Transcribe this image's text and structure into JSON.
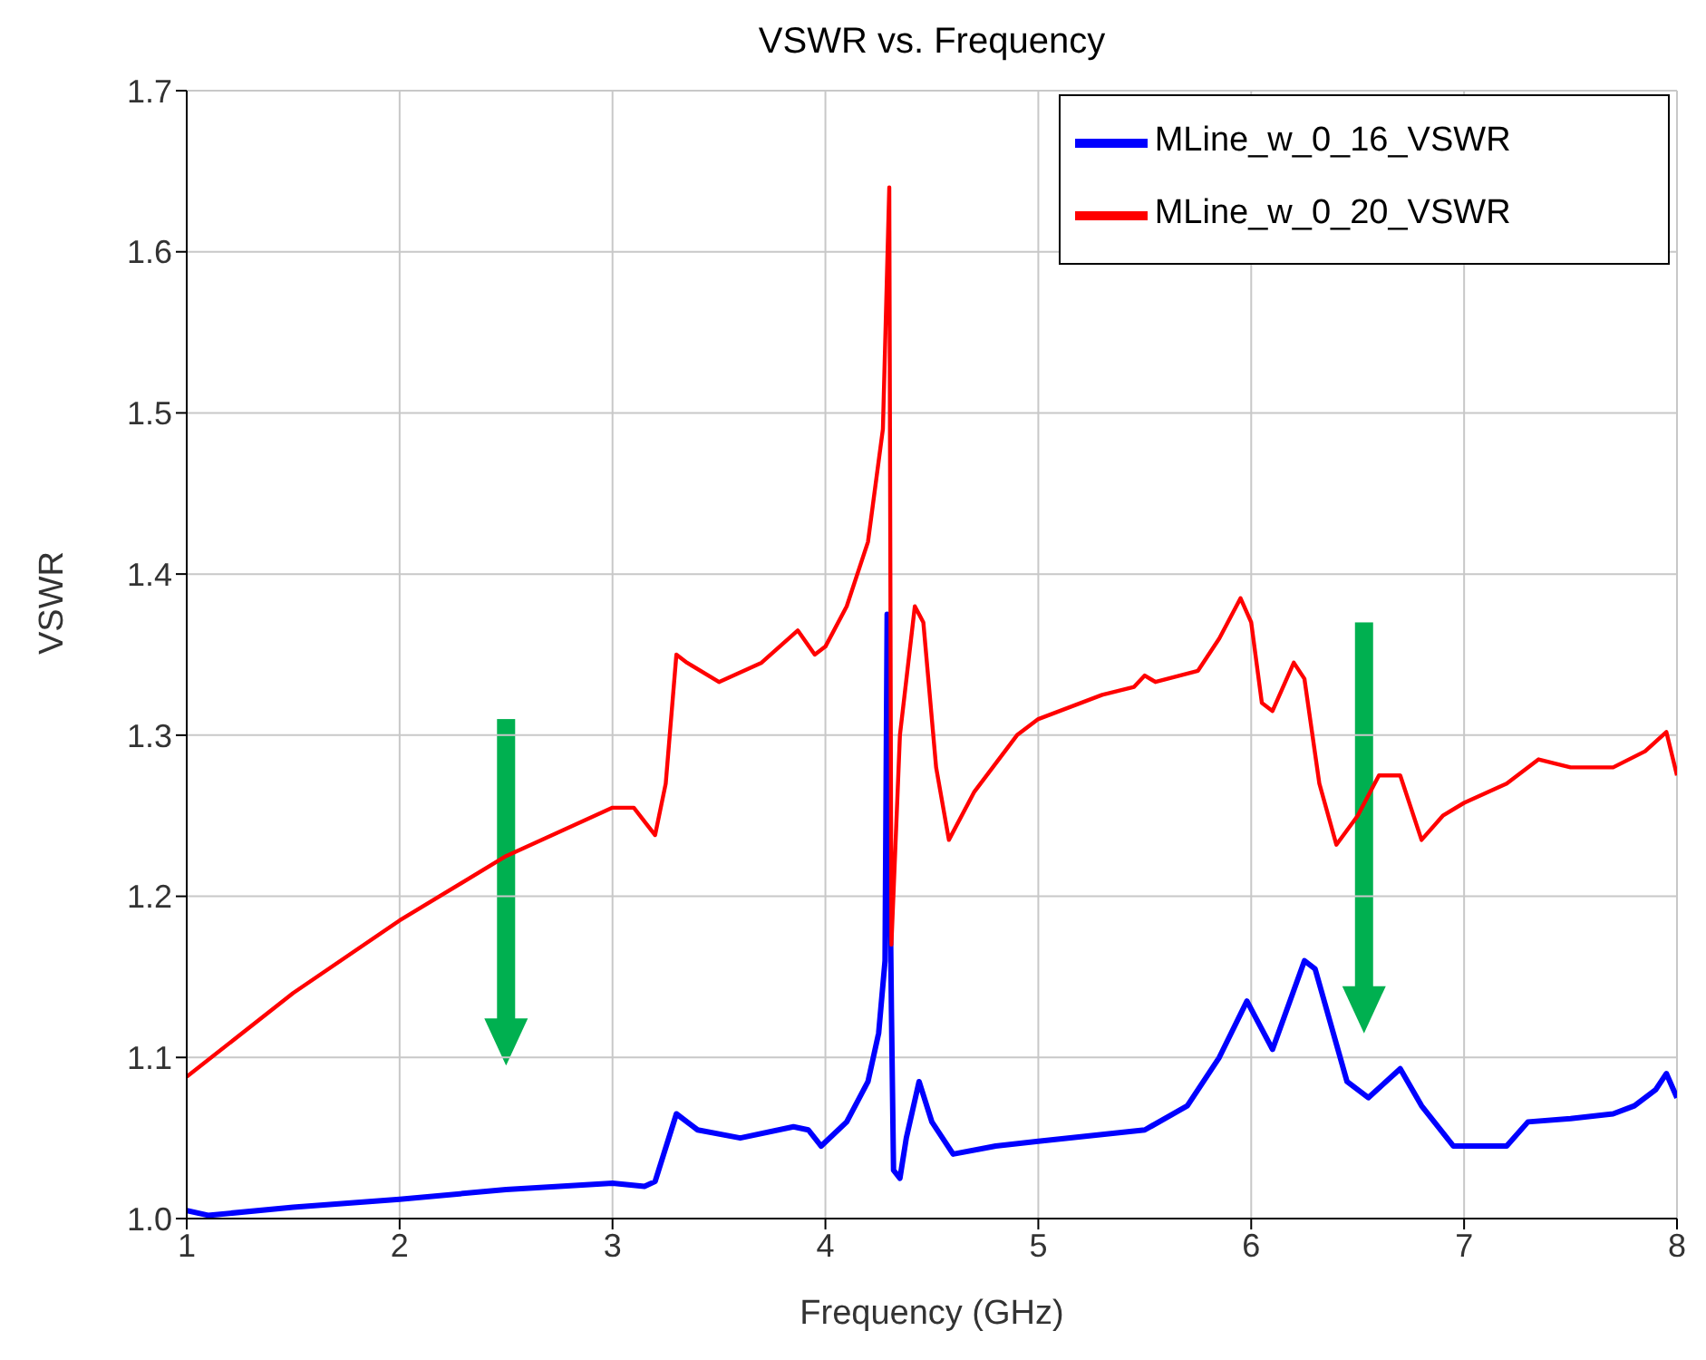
{
  "chart_data": {
    "type": "line",
    "title": "VSWR vs. Frequency",
    "xlabel": "Frequency (GHz)",
    "ylabel": "VSWR",
    "xlim": [
      1,
      8
    ],
    "xticks": [
      1,
      2,
      3,
      4,
      5,
      6,
      7,
      8
    ],
    "ylim": [
      1,
      1.7
    ],
    "yticks": [
      {
        "value": 1,
        "label": "1.0"
      },
      {
        "value": 1.1,
        "label": "1.1"
      },
      {
        "value": 1.2,
        "label": "1.2"
      },
      {
        "value": 1.3,
        "label": "1.3"
      },
      {
        "value": 1.4,
        "label": "1.4"
      },
      {
        "value": 1.5,
        "label": "1.5"
      },
      {
        "value": 1.6,
        "label": "1.6"
      },
      {
        "value": 1.7,
        "label": "1.7"
      }
    ],
    "grid": true,
    "legend": "top right",
    "marker": "none",
    "line_style": "solid",
    "series": [
      {
        "name": "MLine_w_0_16_VSWR",
        "color": "#0000ff",
        "x": [
          1,
          1.1,
          1.5,
          2,
          2.5,
          3,
          3.15,
          3.2,
          3.3,
          3.4,
          3.6,
          3.85,
          3.92,
          3.98,
          4.1,
          4.2,
          4.25,
          4.28,
          4.29,
          4.31,
          4.32,
          4.35,
          4.38,
          4.44,
          4.5,
          4.6,
          4.8,
          5,
          5.5,
          5.7,
          5.85,
          5.98,
          6.1,
          6.25,
          6.3,
          6.45,
          6.55,
          6.7,
          6.8,
          6.95,
          7.2,
          7.3,
          7.5,
          7.7,
          7.8,
          7.9,
          7.95,
          8
        ],
        "values": [
          1.005,
          1.002,
          1.007,
          1.012,
          1.018,
          1.022,
          1.02,
          1.023,
          1.065,
          1.055,
          1.05,
          1.057,
          1.055,
          1.045,
          1.06,
          1.085,
          1.115,
          1.16,
          1.375,
          1.13,
          1.03,
          1.025,
          1.05,
          1.085,
          1.06,
          1.04,
          1.045,
          1.048,
          1.055,
          1.07,
          1.1,
          1.135,
          1.105,
          1.16,
          1.155,
          1.085,
          1.075,
          1.093,
          1.07,
          1.045,
          1.045,
          1.06,
          1.062,
          1.065,
          1.07,
          1.08,
          1.09,
          1.075
        ]
      },
      {
        "name": "MLine_w_0_20_VSWR",
        "color": "#ff0000",
        "x": [
          1,
          1.5,
          2,
          2.5,
          3,
          3.1,
          3.2,
          3.25,
          3.3,
          3.35,
          3.5,
          3.7,
          3.87,
          3.95,
          4,
          4.1,
          4.2,
          4.27,
          4.3,
          4.31,
          4.35,
          4.42,
          4.46,
          4.52,
          4.58,
          4.7,
          4.9,
          5,
          5.3,
          5.45,
          5.5,
          5.55,
          5.75,
          5.85,
          5.95,
          6,
          6.05,
          6.1,
          6.2,
          6.25,
          6.32,
          6.4,
          6.5,
          6.6,
          6.7,
          6.8,
          6.9,
          7,
          7.2,
          7.35,
          7.5,
          7.7,
          7.85,
          7.95,
          8
        ],
        "values": [
          1.088,
          1.14,
          1.185,
          1.225,
          1.255,
          1.255,
          1.238,
          1.27,
          1.35,
          1.345,
          1.333,
          1.345,
          1.365,
          1.35,
          1.355,
          1.38,
          1.42,
          1.49,
          1.64,
          1.17,
          1.3,
          1.38,
          1.37,
          1.28,
          1.235,
          1.265,
          1.3,
          1.31,
          1.325,
          1.33,
          1.337,
          1.333,
          1.34,
          1.36,
          1.385,
          1.37,
          1.32,
          1.315,
          1.345,
          1.335,
          1.27,
          1.232,
          1.25,
          1.275,
          1.275,
          1.235,
          1.25,
          1.258,
          1.27,
          1.285,
          1.28,
          1.28,
          1.29,
          1.302,
          1.275
        ]
      }
    ]
  }
}
